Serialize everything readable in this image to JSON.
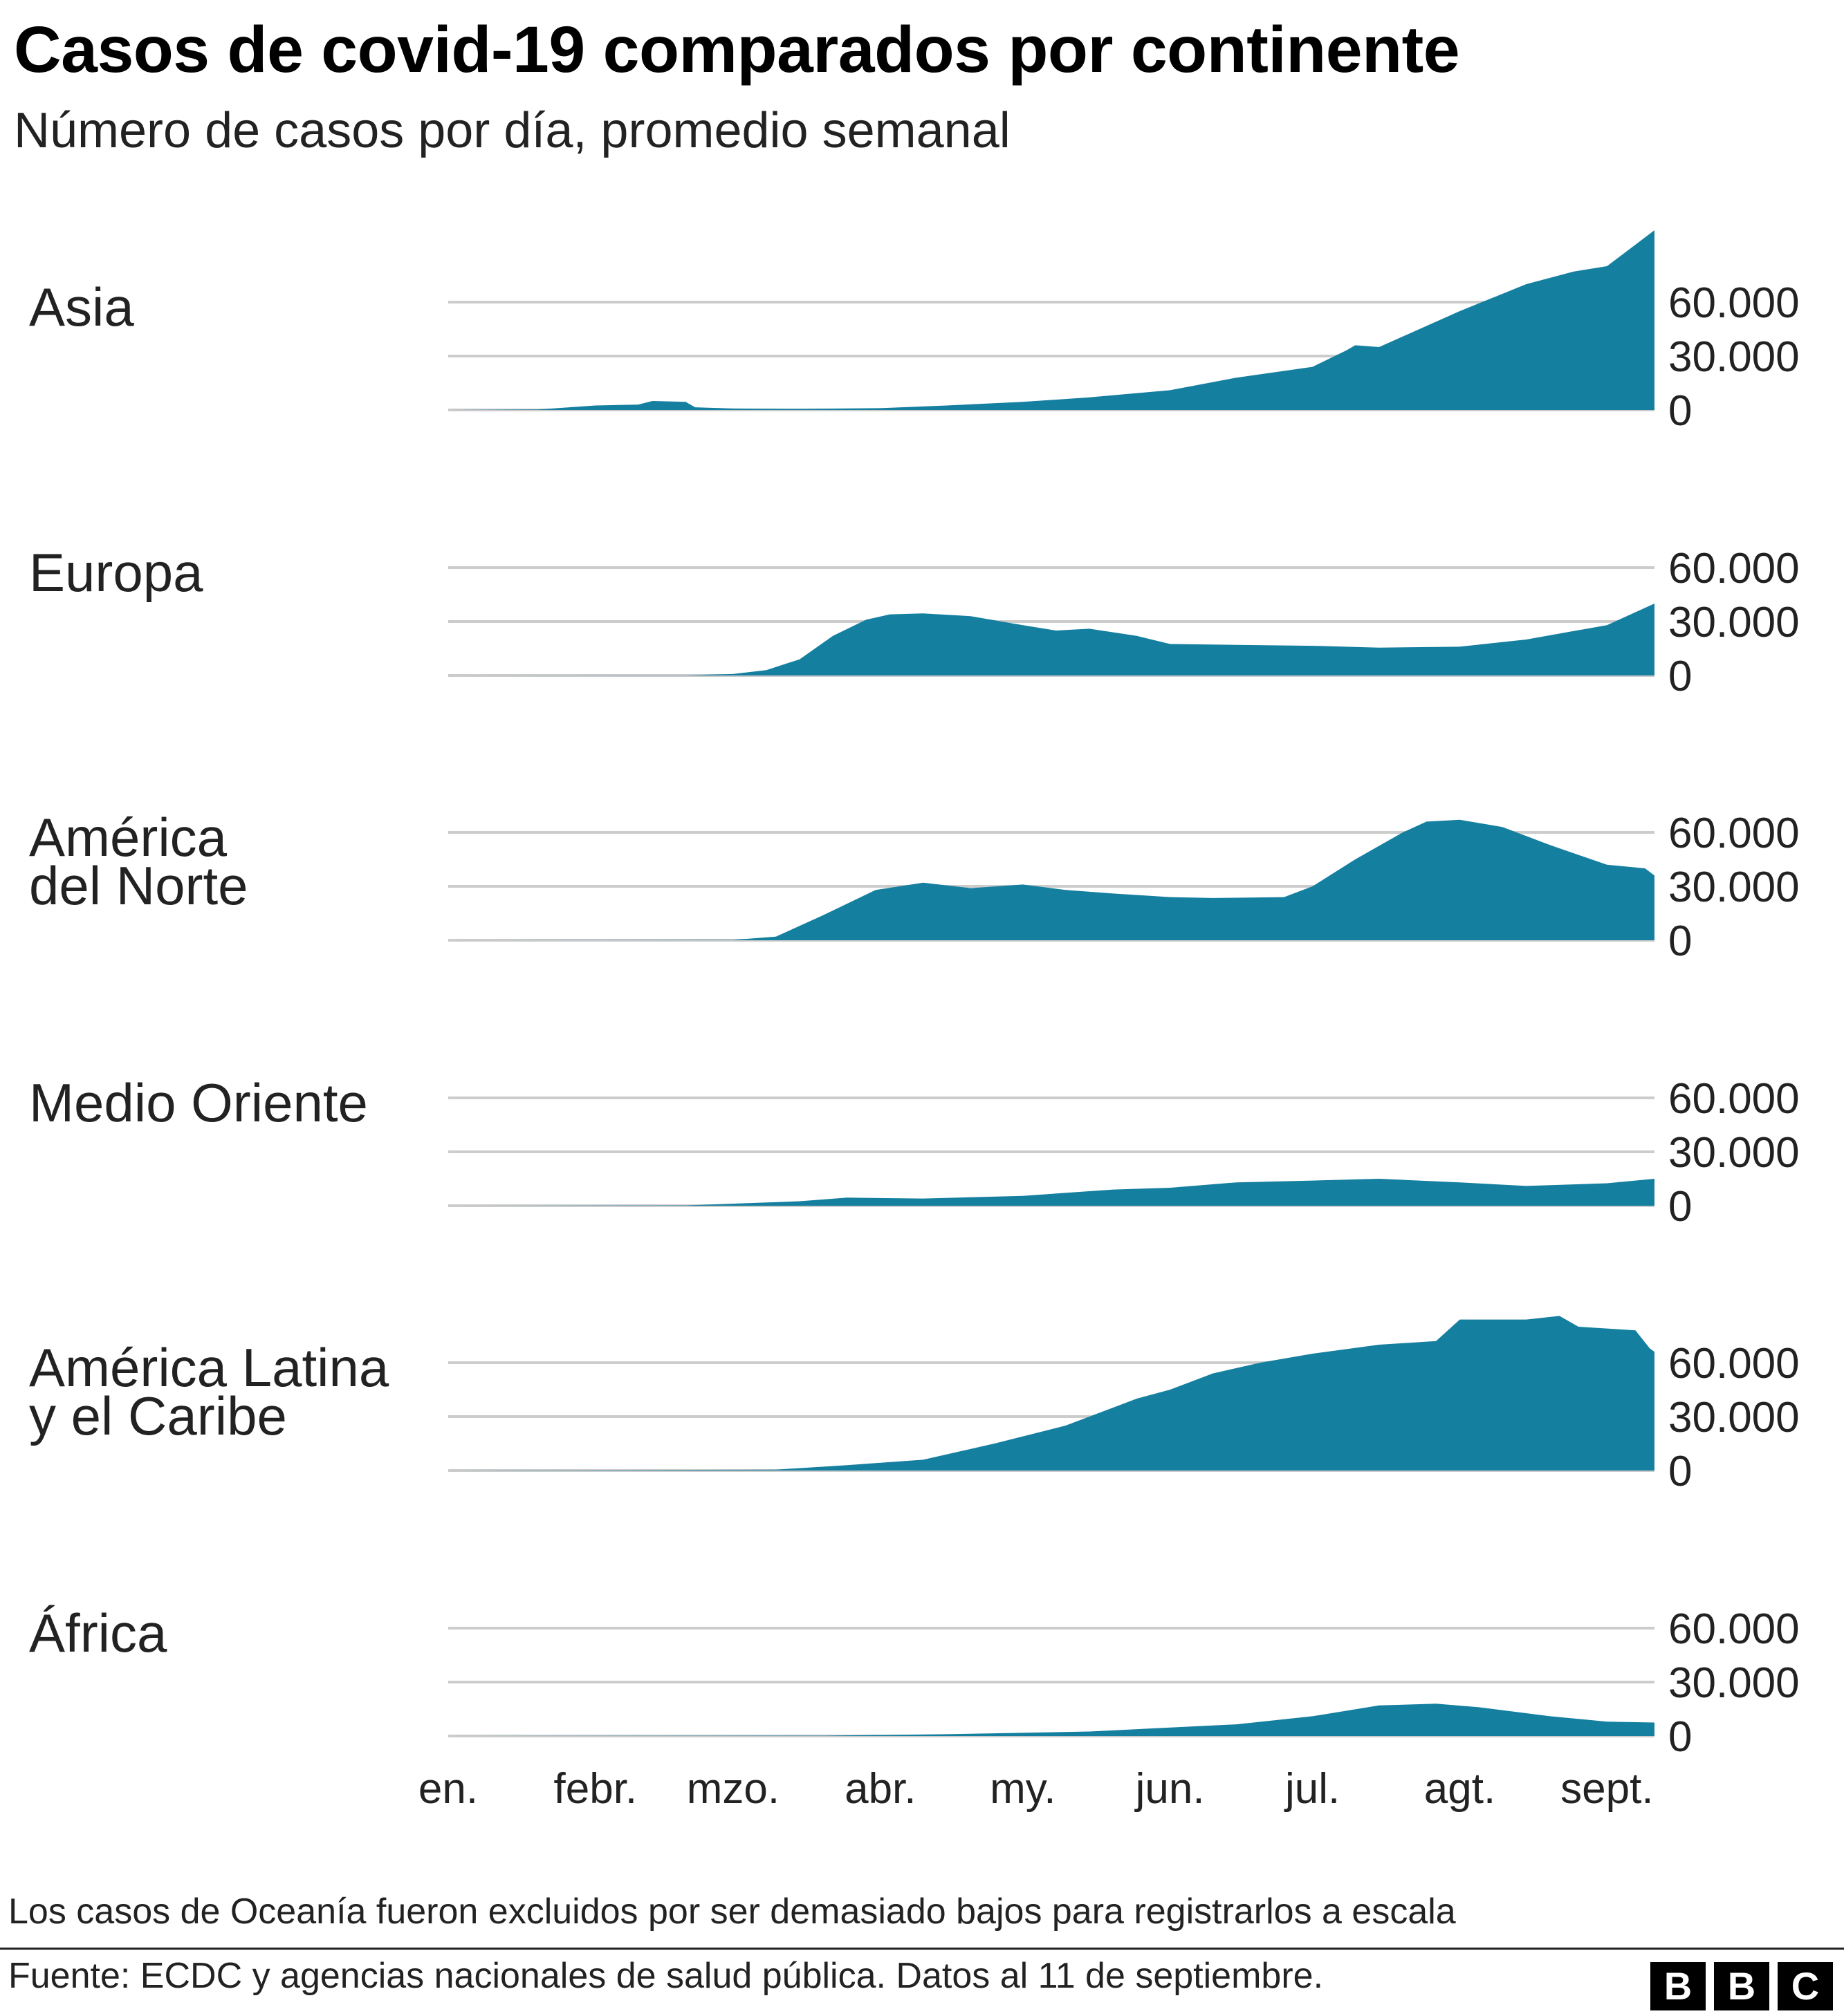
{
  "title": "Casos de covid-19 comparados por continente",
  "subtitle": "Número de casos por día, promedio semanal",
  "footnote": "Los casos de Oceanía fueron excluidos por ser demasiado bajos para registrarlos a escala",
  "source": "Fuente: ECDC y agencias nacionales de salud pública. Datos al 11 de septiembre.",
  "logo_letters": [
    "B",
    "B",
    "C"
  ],
  "colors": {
    "area": "#157fa0",
    "grid": "#cccccc",
    "text": "#222222"
  },
  "chart_data": {
    "type": "area",
    "layout": "small-multiples",
    "x_type": "date",
    "x_range": [
      "2020-01-01",
      "2020-09-11"
    ],
    "x_ticks": [
      {
        "date": "2020-01-01",
        "label": "en."
      },
      {
        "date": "2020-02-01",
        "label": "febr."
      },
      {
        "date": "2020-03-01",
        "label": "mzo."
      },
      {
        "date": "2020-04-01",
        "label": "abr."
      },
      {
        "date": "2020-05-01",
        "label": "my."
      },
      {
        "date": "2020-06-01",
        "label": "jun."
      },
      {
        "date": "2020-07-01",
        "label": "jul."
      },
      {
        "date": "2020-08-01",
        "label": "agt."
      },
      {
        "date": "2020-09-01",
        "label": "sept."
      }
    ],
    "y_ticks": [
      {
        "value": 0,
        "label": "0"
      },
      {
        "value": 30000,
        "label": "30.000"
      },
      {
        "value": 60000,
        "label": "60.000"
      }
    ],
    "grid": true,
    "series": [
      {
        "name": "Asia",
        "x": [
          "2020-01-01",
          "2020-01-20",
          "2020-02-01",
          "2020-02-10",
          "2020-02-13",
          "2020-02-20",
          "2020-02-22",
          "2020-03-01",
          "2020-03-15",
          "2020-04-01",
          "2020-04-15",
          "2020-05-01",
          "2020-05-15",
          "2020-06-01",
          "2020-06-15",
          "2020-07-01",
          "2020-07-08",
          "2020-07-10",
          "2020-07-15",
          "2020-08-01",
          "2020-08-15",
          "2020-08-25",
          "2020-09-01",
          "2020-09-05",
          "2020-09-11"
        ],
        "values": [
          0,
          300,
          2500,
          3000,
          5000,
          4500,
          1500,
          800,
          600,
          1000,
          2500,
          4500,
          7000,
          11000,
          18000,
          24000,
          33000,
          36000,
          35000,
          55000,
          70000,
          77000,
          80000,
          88000,
          100000
        ]
      },
      {
        "name": "Europa",
        "x": [
          "2020-01-01",
          "2020-02-20",
          "2020-03-01",
          "2020-03-08",
          "2020-03-15",
          "2020-03-22",
          "2020-03-29",
          "2020-04-03",
          "2020-04-10",
          "2020-04-20",
          "2020-05-01",
          "2020-05-08",
          "2020-05-15",
          "2020-05-25",
          "2020-06-01",
          "2020-06-15",
          "2020-07-01",
          "2020-07-15",
          "2020-08-01",
          "2020-08-15",
          "2020-09-01",
          "2020-09-11"
        ],
        "values": [
          0,
          100,
          800,
          3000,
          9000,
          22000,
          31000,
          34000,
          34500,
          33000,
          28000,
          25000,
          26000,
          22000,
          17500,
          17000,
          16500,
          15500,
          16000,
          20000,
          28000,
          40000
        ]
      },
      {
        "name": "América\ndel Norte",
        "x": [
          "2020-01-01",
          "2020-03-01",
          "2020-03-10",
          "2020-03-20",
          "2020-03-31",
          "2020-04-10",
          "2020-04-20",
          "2020-05-01",
          "2020-05-10",
          "2020-05-20",
          "2020-06-01",
          "2020-06-10",
          "2020-06-25",
          "2020-07-01",
          "2020-07-10",
          "2020-07-20",
          "2020-07-25",
          "2020-08-01",
          "2020-08-10",
          "2020-08-20",
          "2020-09-01",
          "2020-09-09",
          "2020-09-11"
        ],
        "values": [
          0,
          200,
          2000,
          14000,
          28000,
          32000,
          29000,
          31000,
          28000,
          26000,
          24000,
          23500,
          24000,
          30000,
          45000,
          60000,
          66000,
          67000,
          63000,
          53000,
          42000,
          40000,
          36000
        ]
      },
      {
        "name": "Medio Oriente",
        "x": [
          "2020-01-01",
          "2020-02-20",
          "2020-03-15",
          "2020-03-25",
          "2020-04-10",
          "2020-05-01",
          "2020-05-20",
          "2020-06-01",
          "2020-06-15",
          "2020-07-01",
          "2020-07-15",
          "2020-08-01",
          "2020-08-15",
          "2020-09-01",
          "2020-09-11"
        ],
        "values": [
          0,
          200,
          2500,
          4500,
          4000,
          5500,
          9000,
          10000,
          13000,
          14000,
          15000,
          13000,
          11000,
          12500,
          15000
        ]
      },
      {
        "name": "América Latina\ny el Caribe",
        "x": [
          "2020-01-01",
          "2020-03-10",
          "2020-03-25",
          "2020-04-10",
          "2020-04-25",
          "2020-05-10",
          "2020-05-25",
          "2020-06-01",
          "2020-06-10",
          "2020-06-20",
          "2020-07-01",
          "2020-07-15",
          "2020-07-27",
          "2020-08-01",
          "2020-08-15",
          "2020-08-22",
          "2020-08-26",
          "2020-09-01",
          "2020-09-07",
          "2020-09-10",
          "2020-09-11"
        ],
        "values": [
          0,
          500,
          3000,
          6000,
          15000,
          25000,
          40000,
          45000,
          54000,
          60000,
          65000,
          70000,
          72000,
          84000,
          84000,
          86000,
          80000,
          79000,
          78000,
          68000,
          66000
        ]
      },
      {
        "name": "África",
        "x": [
          "2020-01-01",
          "2020-03-20",
          "2020-04-15",
          "2020-05-15",
          "2020-06-15",
          "2020-07-01",
          "2020-07-15",
          "2020-07-27",
          "2020-08-05",
          "2020-08-20",
          "2020-09-01",
          "2020-09-11"
        ],
        "values": [
          0,
          200,
          1000,
          2500,
          6500,
          11000,
          17000,
          18000,
          16000,
          11000,
          8000,
          7500
        ]
      }
    ]
  }
}
